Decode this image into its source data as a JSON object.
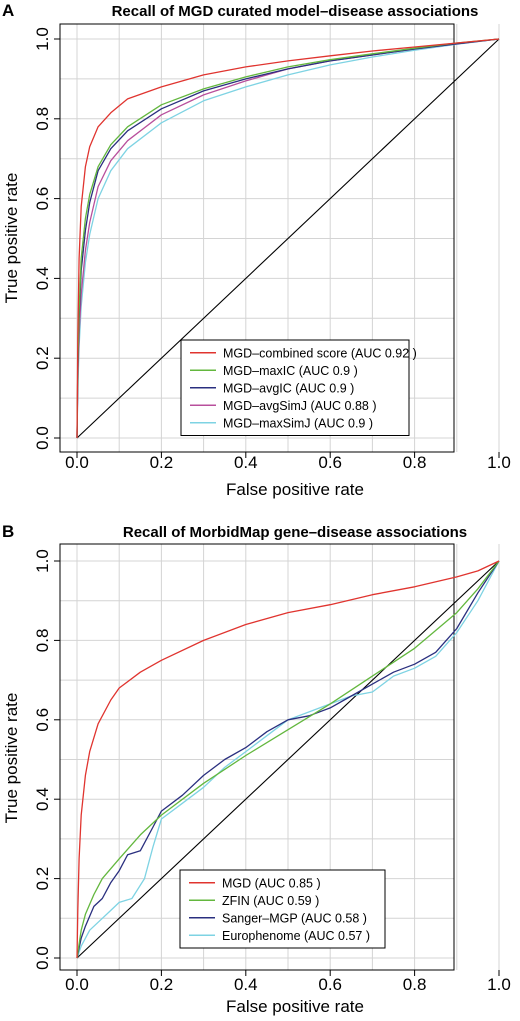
{
  "chart_data": [
    {
      "panel_label": "A",
      "type": "line",
      "title": "Recall of MGD curated model–disease associations",
      "xlabel": "False positive rate",
      "ylabel": "True positive rate",
      "xlim": [
        0,
        1
      ],
      "ylim": [
        0,
        1
      ],
      "xticks": [
        "0.0",
        "0.2",
        "0.4",
        "0.6",
        "0.8",
        "1.0"
      ],
      "yticks": [
        "0.0",
        "0.2",
        "0.4",
        "0.6",
        "0.8",
        "1.0"
      ],
      "grid": true,
      "legend_position": "bottom-right",
      "diagonal": true,
      "series": [
        {
          "name": "MGD–combined score (AUC 0.92 )",
          "color": "#e0342f",
          "x": [
            0,
            0.002,
            0.005,
            0.01,
            0.02,
            0.03,
            0.05,
            0.08,
            0.12,
            0.2,
            0.3,
            0.4,
            0.5,
            0.6,
            0.7,
            0.8,
            0.9,
            1.0
          ],
          "y": [
            0,
            0.25,
            0.45,
            0.58,
            0.68,
            0.73,
            0.78,
            0.815,
            0.85,
            0.88,
            0.91,
            0.93,
            0.945,
            0.958,
            0.97,
            0.98,
            0.99,
            1.0
          ]
        },
        {
          "name": "MGD–maxIC (AUC 0.9 )",
          "color": "#63b73e",
          "x": [
            0,
            0.002,
            0.005,
            0.01,
            0.02,
            0.03,
            0.05,
            0.08,
            0.12,
            0.2,
            0.3,
            0.4,
            0.5,
            0.6,
            0.7,
            0.8,
            0.9,
            1.0
          ],
          "y": [
            0,
            0.18,
            0.32,
            0.45,
            0.55,
            0.61,
            0.68,
            0.735,
            0.78,
            0.835,
            0.875,
            0.905,
            0.93,
            0.948,
            0.963,
            0.977,
            0.99,
            1.0
          ]
        },
        {
          "name": "MGD–avgIC (AUC 0.9 )",
          "color": "#2a2f7f",
          "x": [
            0,
            0.002,
            0.005,
            0.01,
            0.02,
            0.03,
            0.05,
            0.08,
            0.12,
            0.2,
            0.3,
            0.4,
            0.5,
            0.6,
            0.7,
            0.8,
            0.9,
            1.0
          ],
          "y": [
            0,
            0.17,
            0.3,
            0.42,
            0.52,
            0.59,
            0.67,
            0.725,
            0.77,
            0.825,
            0.87,
            0.9,
            0.925,
            0.945,
            0.96,
            0.975,
            0.988,
            1.0
          ]
        },
        {
          "name": "MGD–avgSimJ (AUC 0.88 )",
          "color": "#b84f9c",
          "x": [
            0,
            0.002,
            0.005,
            0.01,
            0.02,
            0.03,
            0.05,
            0.08,
            0.12,
            0.2,
            0.3,
            0.4,
            0.5,
            0.6,
            0.7,
            0.8,
            0.9,
            1.0
          ],
          "y": [
            0,
            0.14,
            0.26,
            0.36,
            0.47,
            0.54,
            0.63,
            0.695,
            0.745,
            0.81,
            0.86,
            0.895,
            0.925,
            0.945,
            0.96,
            0.975,
            0.988,
            1.0
          ]
        },
        {
          "name": "MGD–maxSimJ (AUC 0.9 )",
          "color": "#7ed3e3",
          "x": [
            0,
            0.002,
            0.005,
            0.01,
            0.02,
            0.03,
            0.05,
            0.08,
            0.12,
            0.2,
            0.3,
            0.4,
            0.5,
            0.6,
            0.7,
            0.8,
            0.9,
            1.0
          ],
          "y": [
            0,
            0.12,
            0.23,
            0.33,
            0.44,
            0.51,
            0.6,
            0.67,
            0.725,
            0.79,
            0.845,
            0.88,
            0.91,
            0.935,
            0.955,
            0.972,
            0.987,
            1.0
          ]
        }
      ]
    },
    {
      "panel_label": "B",
      "type": "line",
      "title": "Recall of MorbidMap gene–disease associations",
      "xlabel": "False positive rate",
      "ylabel": "True positive rate",
      "xlim": [
        0,
        1
      ],
      "ylim": [
        0,
        1
      ],
      "xticks": [
        "0.0",
        "0.2",
        "0.4",
        "0.6",
        "0.8",
        "1.0"
      ],
      "yticks": [
        "0.0",
        "0.2",
        "0.4",
        "0.6",
        "0.8",
        "1.0"
      ],
      "grid": true,
      "legend_position": "bottom-right",
      "diagonal": true,
      "series": [
        {
          "name": "MGD (AUC 0.85 )",
          "color": "#e0342f",
          "x": [
            0,
            0.002,
            0.005,
            0.01,
            0.02,
            0.03,
            0.05,
            0.08,
            0.1,
            0.15,
            0.2,
            0.3,
            0.4,
            0.5,
            0.6,
            0.7,
            0.8,
            0.9,
            0.95,
            1.0
          ],
          "y": [
            0,
            0.12,
            0.25,
            0.36,
            0.46,
            0.52,
            0.59,
            0.65,
            0.68,
            0.72,
            0.75,
            0.8,
            0.84,
            0.87,
            0.89,
            0.915,
            0.935,
            0.96,
            0.975,
            1.0
          ]
        },
        {
          "name": "ZFIN (AUC 0.59 )",
          "color": "#63b73e",
          "x": [
            0,
            0.01,
            0.02,
            0.04,
            0.06,
            0.1,
            0.15,
            0.2,
            0.3,
            0.4,
            0.5,
            0.6,
            0.7,
            0.8,
            0.9,
            0.95,
            1.0
          ],
          "y": [
            0,
            0.07,
            0.11,
            0.16,
            0.2,
            0.25,
            0.31,
            0.36,
            0.44,
            0.51,
            0.575,
            0.64,
            0.71,
            0.78,
            0.87,
            0.93,
            1.0
          ]
        },
        {
          "name": "Sanger–MGP (AUC 0.58 )",
          "color": "#2a2f7f",
          "x": [
            0,
            0.01,
            0.02,
            0.04,
            0.06,
            0.08,
            0.1,
            0.12,
            0.15,
            0.18,
            0.2,
            0.25,
            0.3,
            0.35,
            0.4,
            0.45,
            0.5,
            0.55,
            0.6,
            0.65,
            0.7,
            0.75,
            0.8,
            0.85,
            0.9,
            0.95,
            1.0
          ],
          "y": [
            0,
            0.05,
            0.08,
            0.13,
            0.15,
            0.19,
            0.22,
            0.26,
            0.27,
            0.33,
            0.37,
            0.41,
            0.46,
            0.5,
            0.53,
            0.57,
            0.6,
            0.61,
            0.63,
            0.66,
            0.69,
            0.72,
            0.74,
            0.77,
            0.83,
            0.92,
            1.0
          ]
        },
        {
          "name": "Europhenome (AUC 0.57 )",
          "color": "#7ed3e3",
          "x": [
            0,
            0.01,
            0.03,
            0.05,
            0.08,
            0.1,
            0.13,
            0.16,
            0.18,
            0.2,
            0.25,
            0.3,
            0.35,
            0.4,
            0.45,
            0.5,
            0.55,
            0.6,
            0.65,
            0.7,
            0.75,
            0.8,
            0.85,
            0.9,
            0.95,
            1.0
          ],
          "y": [
            0,
            0.03,
            0.07,
            0.09,
            0.12,
            0.14,
            0.15,
            0.2,
            0.28,
            0.35,
            0.39,
            0.43,
            0.48,
            0.52,
            0.56,
            0.6,
            0.62,
            0.64,
            0.66,
            0.67,
            0.71,
            0.73,
            0.76,
            0.82,
            0.9,
            1.0
          ]
        }
      ]
    }
  ]
}
